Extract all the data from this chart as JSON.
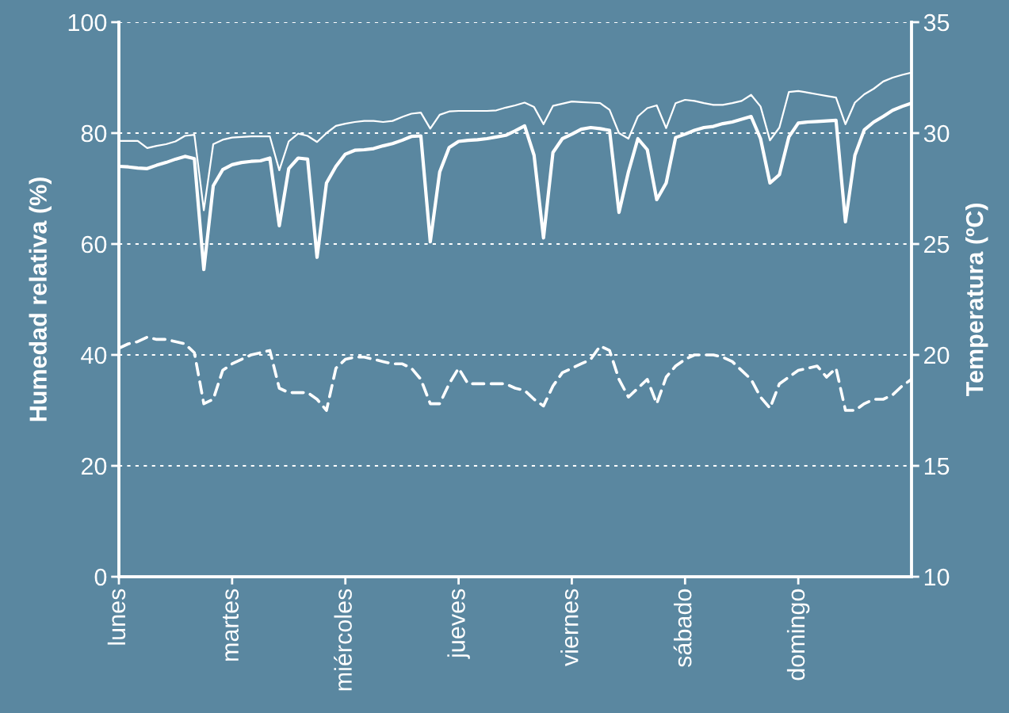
{
  "chart_data": {
    "type": "line",
    "ylabel": "Humedad relativa (%)",
    "y2label": "Temperatura (ºC)",
    "categories": [
      "lunes",
      null,
      null,
      null,
      null,
      null,
      null,
      null,
      null,
      null,
      null,
      null,
      "martes",
      null,
      null,
      null,
      null,
      null,
      null,
      null,
      null,
      null,
      null,
      null,
      "miércoles",
      null,
      null,
      null,
      null,
      null,
      null,
      null,
      null,
      null,
      null,
      null,
      "jueves",
      null,
      null,
      null,
      null,
      null,
      null,
      null,
      null,
      null,
      null,
      null,
      "viernes",
      null,
      null,
      null,
      null,
      null,
      null,
      null,
      null,
      null,
      null,
      null,
      "sábado",
      null,
      null,
      null,
      null,
      null,
      null,
      null,
      null,
      null,
      null,
      null,
      "domingo",
      null,
      null,
      null,
      null,
      null,
      null,
      null,
      null,
      null,
      null,
      null,
      null
    ],
    "ylim": [
      0,
      100
    ],
    "yticks": [
      0,
      20,
      40,
      60,
      80,
      100
    ],
    "y2lim": [
      10,
      35
    ],
    "y2ticks": [
      10,
      15,
      20,
      25,
      30,
      35
    ],
    "grid": "y",
    "marker": "none",
    "series": [
      {
        "color": "#ffffff",
        "line_style": "solid",
        "values": [
          78.6,
          78.6,
          78.6,
          77.3,
          77.7,
          78.0,
          78.5,
          79.5,
          79.7,
          66.1,
          78.0,
          78.8,
          79.2,
          79.3,
          79.4,
          79.4,
          79.4,
          73.3,
          78.5,
          79.9,
          79.5,
          78.4,
          80.0,
          81.3,
          81.7,
          82.0,
          82.2,
          82.2,
          82.0,
          82.2,
          82.9,
          83.5,
          83.7,
          80.8,
          83.3,
          83.9,
          84.0,
          84.0,
          84.0,
          84.0,
          84.1,
          84.6,
          85.0,
          85.5,
          84.7,
          81.6,
          84.9,
          85.3,
          85.7,
          85.6,
          85.5,
          85.4,
          84.2,
          80.0,
          79.0,
          83.0,
          84.5,
          85.0,
          80.9,
          85.4,
          86.0,
          85.8,
          85.4,
          85.1,
          85.1,
          85.4,
          85.8,
          86.9,
          84.8,
          78.7,
          81.0,
          87.4,
          87.6,
          87.3,
          87.0,
          86.7,
          86.4,
          81.6,
          85.5,
          87.0,
          88.0,
          89.3,
          90.0,
          90.5,
          90.9
        ]
      },
      {
        "color": "#ffffff",
        "line_style": "solid",
        "values": [
          74.0,
          73.9,
          73.7,
          73.6,
          74.2,
          74.7,
          75.3,
          75.8,
          75.4,
          55.4,
          70.5,
          73.4,
          74.3,
          74.7,
          74.9,
          75.0,
          75.5,
          63.3,
          73.6,
          75.5,
          75.3,
          57.6,
          71.0,
          74.0,
          76.2,
          76.9,
          77.0,
          77.2,
          77.7,
          78.1,
          78.7,
          79.4,
          79.5,
          60.4,
          73.0,
          77.4,
          78.5,
          78.7,
          78.8,
          79.0,
          79.3,
          79.6,
          80.4,
          81.3,
          76.0,
          61.1,
          76.5,
          79.0,
          79.8,
          80.7,
          81.0,
          80.8,
          80.5,
          65.7,
          73.0,
          79.0,
          77.0,
          68.0,
          71.0,
          79.2,
          79.8,
          80.5,
          81.0,
          81.2,
          81.7,
          82.0,
          82.5,
          83.0,
          79.0,
          71.0,
          72.5,
          79.3,
          81.8,
          82.0,
          82.1,
          82.2,
          82.3,
          64.0,
          76.0,
          80.6,
          82.0,
          83.0,
          84.1,
          84.8,
          85.4
        ]
      },
      {
        "color": "#ffffff",
        "line_style": "dashed",
        "axis": "y2",
        "values": [
          20.3,
          20.5,
          20.6,
          20.8,
          20.7,
          20.7,
          20.6,
          20.5,
          20.1,
          17.8,
          18.0,
          19.3,
          19.6,
          19.8,
          20.0,
          20.1,
          20.2,
          18.5,
          18.3,
          18.3,
          18.3,
          18.0,
          17.5,
          19.4,
          19.8,
          19.9,
          19.9,
          19.8,
          19.7,
          19.6,
          19.6,
          19.4,
          18.9,
          17.8,
          17.8,
          18.7,
          19.4,
          18.7,
          18.7,
          18.7,
          18.7,
          18.7,
          18.5,
          18.4,
          18.0,
          17.7,
          18.6,
          19.2,
          19.4,
          19.6,
          19.8,
          20.4,
          20.2,
          18.9,
          18.1,
          18.5,
          18.9,
          17.8,
          19.0,
          19.5,
          19.8,
          20.0,
          20.0,
          20.0,
          19.9,
          19.7,
          19.3,
          18.9,
          18.1,
          17.6,
          18.7,
          19.0,
          19.3,
          19.4,
          19.5,
          19.0,
          19.4,
          17.5,
          17.5,
          17.8,
          18.0,
          18.0,
          18.2,
          18.6,
          18.9
        ]
      }
    ]
  }
}
